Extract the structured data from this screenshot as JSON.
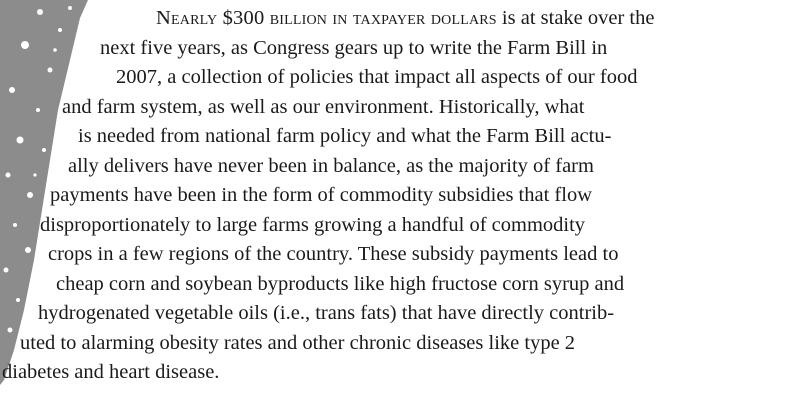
{
  "body": {
    "lead": "Nearly $300 billion in taxpayer dollars",
    "lines": [
      " is at stake over the",
      "next five years, as Congress gears up to write the Farm Bill in",
      "2007, a collection of policies that impact all aspects of our food",
      "and farm system, as well as our environment. Historically, what",
      "is needed from national farm policy and what the Farm Bill actu-",
      "ally delivers have never been in balance, as the majority of farm",
      "payments have been in the form of commodity subsidies that flow",
      "disproportionately to large farms growing a handful of commodity",
      "crops in a few regions of the country. These subsidy payments lead to",
      "cheap corn and soybean byproducts like high fructose corn syrup and",
      "hydrogenated vegetable oils (i.e., trans fats) that have directly contrib-",
      "uted to alarming obesity rates and other chronic diseases like type 2",
      "diabetes and heart disease."
    ]
  }
}
